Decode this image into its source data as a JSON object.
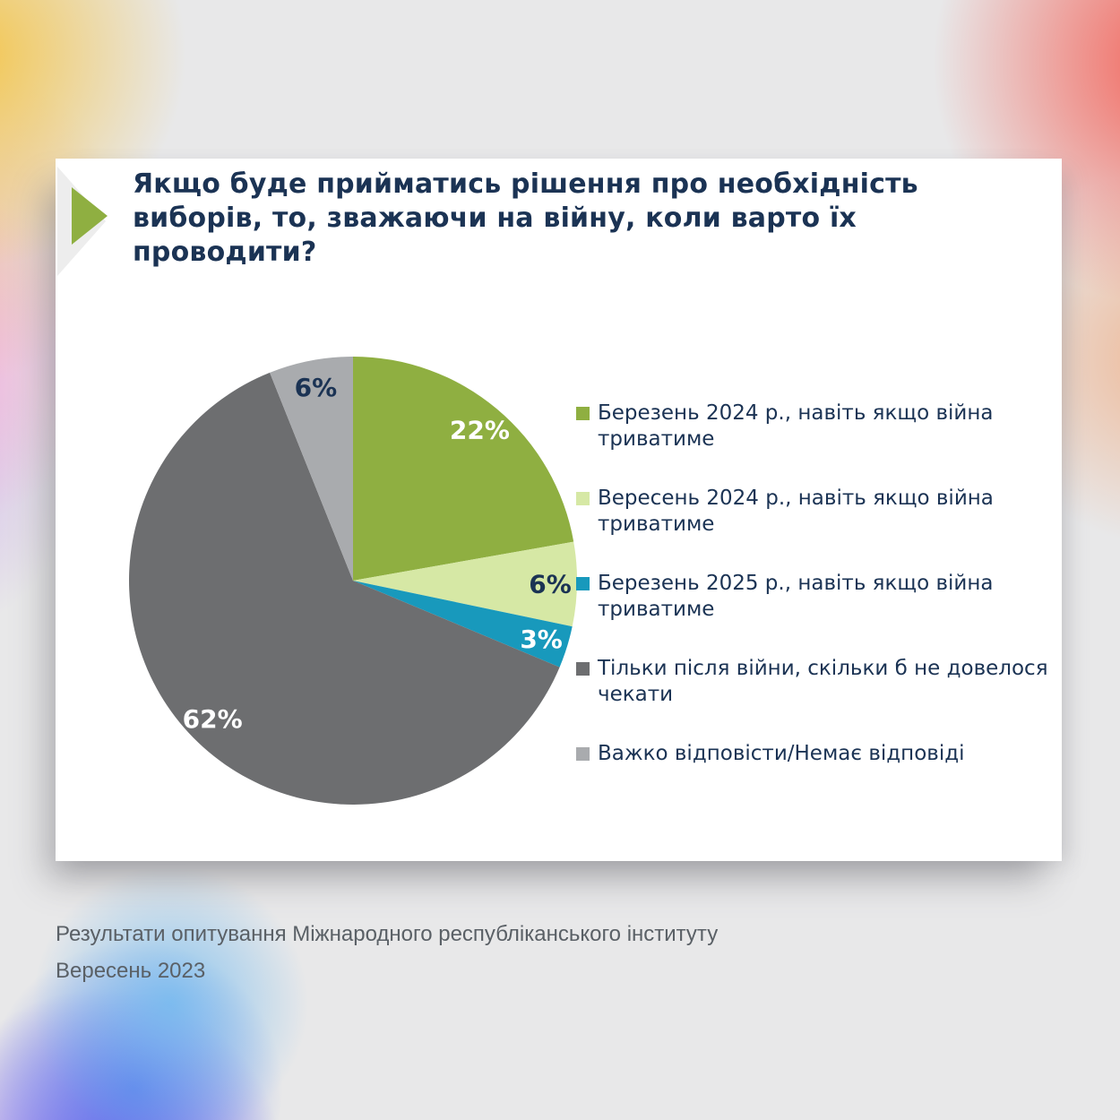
{
  "slide": {
    "title": "Якщо буде прийматись рішення про необхідність виборів, то, зважаючи на війну, коли варто їх проводити?",
    "title_lines": [
      "Якщо буде прийматись рішення про необхідність",
      "виборів, то, зважаючи на війну, коли варто їх",
      "проводити?"
    ]
  },
  "footer": {
    "line1": "Результати опитування Міжнародного республіканського інституту",
    "line2": "Вересень 2023"
  },
  "chart_data": {
    "type": "pie",
    "title": "Якщо буде прийматись рішення про необхідність виборів, то, зважаючи на війну, коли варто їх проводити?",
    "legend_position": "right",
    "value_labels": "percent shown inside slices",
    "start_angle_deg": 0,
    "direction": "clockwise",
    "total": 100,
    "slices": [
      {
        "label": "Березень 2024 р., навіть якщо війна триватиме",
        "value": 22,
        "display": "22%",
        "color": "#8FAF41",
        "label_color": "#FFFFFF"
      },
      {
        "label": "Вересень 2024 р., навіть якщо війна триватиме",
        "value": 6,
        "display": "6%",
        "color": "#D6E8A5",
        "label_color": "#1B3354"
      },
      {
        "label": "Березень 2025 р., навіть якщо війна триватиме",
        "value": 3,
        "display": "3%",
        "color": "#1899BC",
        "label_color": "#FFFFFF"
      },
      {
        "label": "Тільки після війни, скільки б не довелося чекати",
        "value": 62,
        "display": "62%",
        "color": "#6D6E70",
        "label_color": "#FFFFFF"
      },
      {
        "label": "Важко відповісти/Немає відповіді",
        "value": 6,
        "display": "6%",
        "color": "#A9ABAE",
        "label_color": "#1B3354"
      }
    ]
  },
  "colors": {
    "title_navy": "#1B3354",
    "card_bg": "#FFFFFF",
    "accent_green": "#8FAF41",
    "footer_gray": "#5A6066"
  }
}
